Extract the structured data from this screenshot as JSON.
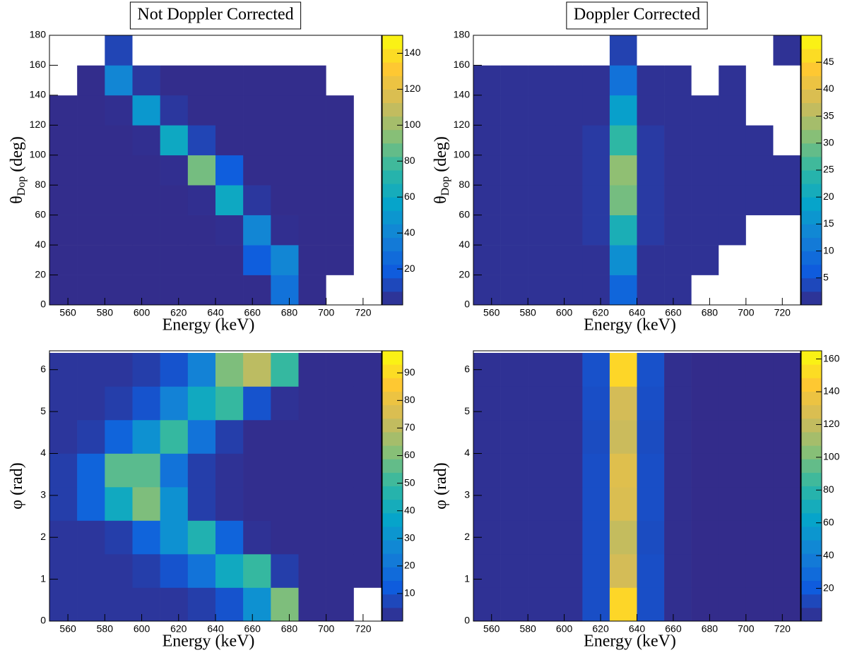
{
  "chart_data": [
    {
      "type": "heatmap",
      "title": "Not Doppler Corrected",
      "xlabel": "Energy (keV)",
      "ylabel": "θ",
      "ylabel_sub": "Dop",
      "ylabel_unit": " (deg)",
      "colorscale": [
        "#352a87",
        "#0f5cdd",
        "#1481d6",
        "#06a4ca",
        "#2eb7a4",
        "#87bf77",
        "#d1bb59",
        "#fec832",
        "#f9fb0e"
      ],
      "xlim": [
        550,
        730
      ],
      "xticks": [
        560,
        580,
        600,
        620,
        640,
        660,
        680,
        700,
        720
      ],
      "ylim": [
        0,
        180
      ],
      "yticks": [
        0,
        20,
        40,
        60,
        80,
        100,
        120,
        140,
        160,
        180
      ],
      "zlim": [
        0,
        150
      ],
      "zticks": [
        20,
        40,
        60,
        80,
        100,
        120,
        140
      ],
      "xbins": [
        550,
        565,
        580,
        595,
        610,
        625,
        640,
        655,
        670,
        685,
        700,
        715,
        730
      ],
      "ybins": [
        0,
        20,
        40,
        60,
        80,
        100,
        120,
        140,
        160,
        180
      ],
      "z": [
        [
          1,
          1,
          1,
          1,
          1,
          1,
          1,
          1,
          30,
          1,
          0,
          0
        ],
        [
          1,
          1,
          1,
          1,
          1,
          1,
          1,
          20,
          40,
          1,
          1,
          0
        ],
        [
          1,
          1,
          1,
          1,
          1,
          1,
          2,
          40,
          2,
          1,
          1,
          0
        ],
        [
          1,
          1,
          1,
          1,
          1,
          2,
          60,
          5,
          1,
          1,
          1,
          0
        ],
        [
          1,
          1,
          1,
          1,
          2,
          90,
          20,
          1,
          1,
          1,
          1,
          0
        ],
        [
          1,
          1,
          1,
          2,
          60,
          10,
          1,
          1,
          1,
          1,
          1,
          0
        ],
        [
          1,
          1,
          2,
          50,
          5,
          1,
          1,
          1,
          1,
          1,
          1,
          0
        ],
        [
          0,
          1,
          40,
          5,
          1,
          1,
          1,
          1,
          1,
          1,
          0,
          0
        ],
        [
          0,
          0,
          10,
          0,
          0,
          0,
          0,
          0,
          0,
          0,
          0,
          0
        ]
      ]
    },
    {
      "type": "heatmap",
      "title": "Doppler Corrected",
      "xlabel": "Energy (keV)",
      "ylabel": "θ",
      "ylabel_sub": "Dop",
      "ylabel_unit": " (deg)",
      "colorscale": [
        "#352a87",
        "#0f5cdd",
        "#1481d6",
        "#06a4ca",
        "#2eb7a4",
        "#87bf77",
        "#d1bb59",
        "#fec832",
        "#f9fb0e"
      ],
      "xlim": [
        550,
        730
      ],
      "xticks": [
        560,
        580,
        600,
        620,
        640,
        660,
        680,
        700,
        720
      ],
      "ylim": [
        0,
        180
      ],
      "yticks": [
        0,
        20,
        40,
        60,
        80,
        100,
        120,
        140,
        160,
        180
      ],
      "zlim": [
        0,
        50
      ],
      "zticks": [
        5,
        10,
        15,
        20,
        25,
        30,
        35,
        40,
        45
      ],
      "xbins": [
        550,
        565,
        580,
        595,
        610,
        625,
        640,
        655,
        670,
        685,
        700,
        715,
        730
      ],
      "ybins": [
        0,
        20,
        40,
        60,
        80,
        100,
        120,
        140,
        160,
        180
      ],
      "z": [
        [
          1,
          1,
          1,
          1,
          1,
          8,
          1,
          1,
          0,
          0,
          0,
          0
        ],
        [
          1,
          1,
          1,
          1,
          1,
          15,
          1,
          1,
          1,
          0,
          0,
          0
        ],
        [
          1,
          1,
          1,
          1,
          2,
          22,
          2,
          1,
          1,
          1,
          0,
          0
        ],
        [
          1,
          1,
          1,
          1,
          2,
          30,
          2,
          1,
          1,
          1,
          1,
          1
        ],
        [
          1,
          1,
          1,
          1,
          2,
          32,
          2,
          1,
          1,
          1,
          1,
          1
        ],
        [
          1,
          1,
          1,
          1,
          2,
          25,
          2,
          1,
          1,
          1,
          1,
          0
        ],
        [
          1,
          1,
          1,
          1,
          1,
          18,
          1,
          1,
          1,
          1,
          0,
          0
        ],
        [
          1,
          1,
          1,
          1,
          1,
          10,
          1,
          1,
          0,
          1,
          0,
          0
        ],
        [
          0,
          0,
          0,
          0,
          0,
          3,
          0,
          0,
          0,
          0,
          0,
          1
        ]
      ]
    },
    {
      "type": "heatmap",
      "xlabel": "Energy (keV)",
      "ylabel": "φ",
      "ylabel_unit": " (rad)",
      "colorscale": [
        "#352a87",
        "#0f5cdd",
        "#1481d6",
        "#06a4ca",
        "#2eb7a4",
        "#87bf77",
        "#d1bb59",
        "#fec832",
        "#f9fb0e"
      ],
      "xlim": [
        550,
        730
      ],
      "xticks": [
        560,
        580,
        600,
        620,
        640,
        660,
        680,
        700,
        720
      ],
      "ylim": [
        0,
        6.45
      ],
      "yticks": [
        0,
        1,
        2,
        3,
        4,
        5,
        6
      ],
      "zlim": [
        0,
        98
      ],
      "zticks": [
        10,
        20,
        30,
        40,
        50,
        60,
        70,
        80,
        90
      ],
      "xbins": [
        550,
        565,
        580,
        595,
        610,
        625,
        640,
        655,
        670,
        685,
        700,
        715,
        730
      ],
      "ybins": [
        0,
        0.8,
        1.6,
        2.4,
        3.2,
        4.0,
        4.8,
        5.6,
        6.4
      ],
      "z": [
        [
          3,
          3,
          3,
          3,
          3,
          5,
          10,
          30,
          60,
          1,
          1,
          0
        ],
        [
          3,
          3,
          3,
          5,
          10,
          20,
          40,
          50,
          5,
          1,
          1,
          1
        ],
        [
          3,
          3,
          5,
          15,
          30,
          45,
          15,
          2,
          1,
          1,
          1,
          1
        ],
        [
          5,
          15,
          40,
          60,
          30,
          5,
          2,
          1,
          1,
          1,
          1,
          1
        ],
        [
          5,
          15,
          55,
          55,
          20,
          5,
          2,
          1,
          1,
          1,
          1,
          1
        ],
        [
          3,
          5,
          15,
          30,
          50,
          20,
          5,
          1,
          1,
          1,
          1,
          1
        ],
        [
          3,
          3,
          5,
          10,
          25,
          40,
          50,
          10,
          2,
          1,
          1,
          1
        ],
        [
          3,
          3,
          3,
          5,
          10,
          25,
          60,
          70,
          50,
          1,
          1,
          1
        ]
      ]
    },
    {
      "type": "heatmap",
      "xlabel": "Energy (keV)",
      "ylabel": "φ",
      "ylabel_unit": " (rad)",
      "colorscale": [
        "#352a87",
        "#0f5cdd",
        "#1481d6",
        "#06a4ca",
        "#2eb7a4",
        "#87bf77",
        "#d1bb59",
        "#fec832",
        "#f9fb0e"
      ],
      "xlim": [
        550,
        730
      ],
      "xticks": [
        560,
        580,
        600,
        620,
        640,
        660,
        680,
        700,
        720
      ],
      "ylim": [
        0,
        6.45
      ],
      "yticks": [
        0,
        1,
        2,
        3,
        4,
        5,
        6
      ],
      "zlim": [
        0,
        165
      ],
      "zticks": [
        20,
        40,
        60,
        80,
        100,
        120,
        140,
        160
      ],
      "xbins": [
        550,
        565,
        580,
        595,
        610,
        625,
        640,
        655,
        670,
        685,
        700,
        715,
        730
      ],
      "ybins": [
        0,
        0.8,
        1.6,
        2.4,
        3.2,
        4.0,
        4.8,
        5.6,
        6.4
      ],
      "z": [
        [
          3,
          3,
          3,
          3,
          15,
          150,
          15,
          2,
          1,
          1,
          1,
          1
        ],
        [
          3,
          3,
          3,
          3,
          15,
          125,
          15,
          2,
          1,
          1,
          1,
          1
        ],
        [
          3,
          3,
          3,
          3,
          15,
          120,
          14,
          2,
          1,
          1,
          1,
          1
        ],
        [
          3,
          3,
          3,
          3,
          15,
          128,
          15,
          2,
          1,
          1,
          1,
          1
        ],
        [
          3,
          3,
          3,
          3,
          15,
          130,
          15,
          2,
          1,
          1,
          1,
          1
        ],
        [
          3,
          3,
          3,
          3,
          14,
          122,
          14,
          2,
          1,
          1,
          1,
          1
        ],
        [
          3,
          3,
          3,
          3,
          15,
          125,
          15,
          2,
          1,
          1,
          1,
          1
        ],
        [
          3,
          3,
          3,
          3,
          16,
          150,
          16,
          2,
          1,
          1,
          1,
          1
        ]
      ]
    }
  ]
}
